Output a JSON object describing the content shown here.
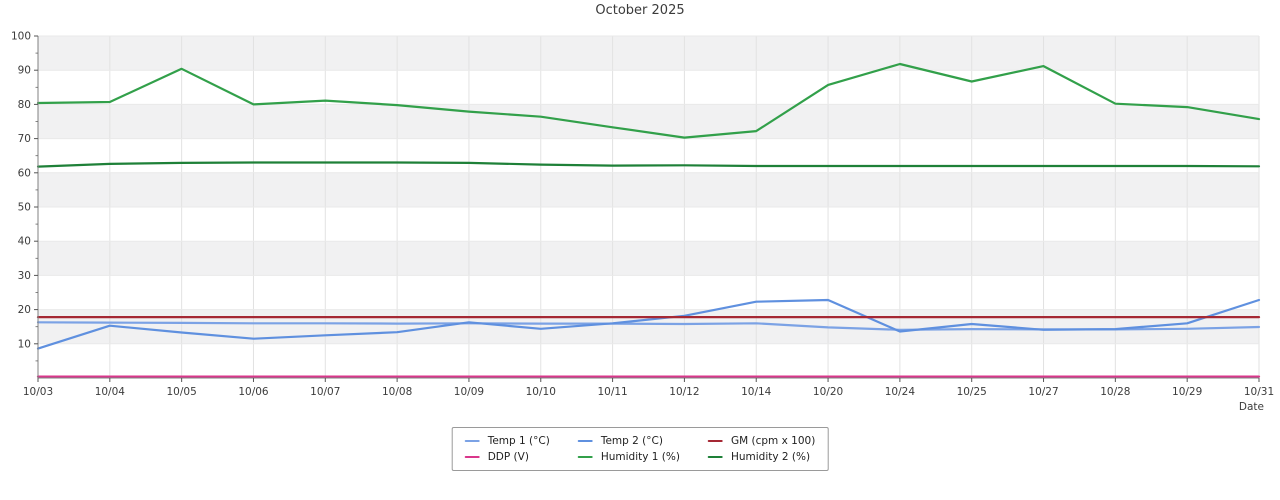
{
  "title": "October 2025",
  "chart_data": {
    "type": "line",
    "title": "October 2025",
    "xlabel": "Date",
    "ylabel": "",
    "ylim": [
      0,
      100
    ],
    "ytick_step": 10,
    "ytick_minor_step": 5,
    "grid": true,
    "legend_position": "bottom-center",
    "plot_band_colors": [
      "#f1f1f2",
      "#ffffff"
    ],
    "categories": [
      "10/03",
      "10/04",
      "10/05",
      "10/06",
      "10/07",
      "10/08",
      "10/09",
      "10/10",
      "10/11",
      "10/12",
      "10/14",
      "10/20",
      "10/24",
      "10/25",
      "10/27",
      "10/28",
      "10/29",
      "10/31"
    ],
    "series": [
      {
        "name": "Temp 1 (°C)",
        "color": "#7BA2E5",
        "values": [
          16.3,
          16.2,
          16.1,
          16.0,
          16.0,
          15.9,
          16.0,
          15.9,
          15.9,
          15.8,
          16.0,
          14.8,
          14.1,
          14.3,
          14.2,
          14.2,
          14.4,
          14.9
        ]
      },
      {
        "name": "Temp 2 (°C)",
        "color": "#5F90DF",
        "values": [
          8.6,
          15.3,
          13.3,
          11.5,
          12.5,
          13.4,
          16.3,
          14.4,
          16.0,
          18.2,
          22.3,
          22.8,
          13.6,
          15.8,
          14.1,
          14.3,
          16.0,
          22.8
        ]
      },
      {
        "name": "GM (cpm x 100)",
        "color": "#A52834",
        "values": [
          17.8,
          17.8,
          17.8,
          17.8,
          17.8,
          17.8,
          17.8,
          17.8,
          17.8,
          17.8,
          17.8,
          17.8,
          17.8,
          17.8,
          17.8,
          17.8,
          17.8,
          17.8
        ]
      },
      {
        "name": "DDP (V)",
        "color": "#D9368B",
        "values": [
          0.4,
          0.4,
          0.4,
          0.4,
          0.4,
          0.4,
          0.4,
          0.4,
          0.4,
          0.4,
          0.4,
          0.4,
          0.4,
          0.4,
          0.4,
          0.4,
          0.4,
          0.4
        ]
      },
      {
        "name": "Humidity 1 (%)",
        "color": "#32A04A",
        "values": [
          80.4,
          80.7,
          90.4,
          80.0,
          81.1,
          79.8,
          77.9,
          76.4,
          73.3,
          70.3,
          72.2,
          85.7,
          91.8,
          86.7,
          91.2,
          80.2,
          79.2,
          75.7
        ]
      },
      {
        "name": "Humidity 2 (%)",
        "color": "#1E8038",
        "values": [
          61.8,
          62.6,
          62.9,
          63.0,
          63.0,
          63.0,
          62.9,
          62.4,
          62.1,
          62.2,
          62.0,
          62.0,
          62.0,
          62.0,
          62.0,
          62.0,
          62.0,
          61.9
        ]
      }
    ]
  }
}
